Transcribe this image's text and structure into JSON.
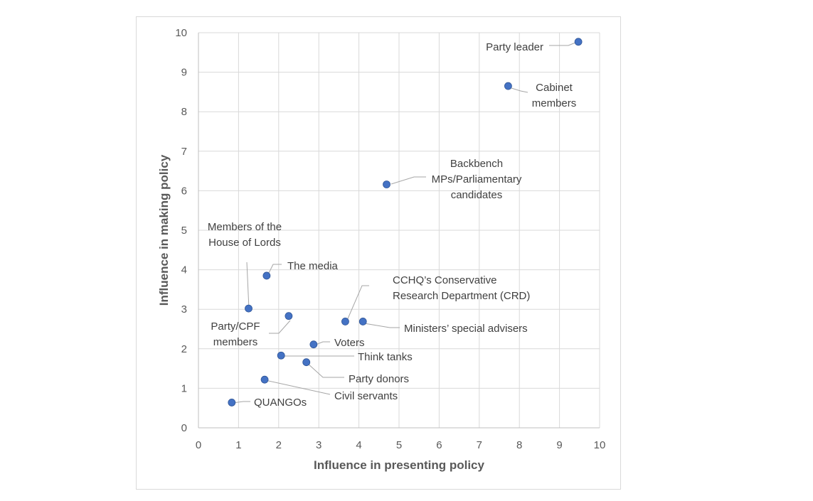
{
  "chart_data": {
    "type": "scatter",
    "xlabel": "Influence in presenting policy",
    "ylabel": "Influence in making policy",
    "xlim": [
      0,
      10
    ],
    "ylim": [
      0,
      10
    ],
    "xticks": [
      "0",
      "1",
      "2",
      "3",
      "4",
      "5",
      "6",
      "7",
      "8",
      "9",
      "10"
    ],
    "yticks": [
      "0",
      "1",
      "2",
      "3",
      "4",
      "5",
      "6",
      "7",
      "8",
      "9",
      "10"
    ],
    "grid": true,
    "marker_color": "#4472c4",
    "points": [
      {
        "label": [
          "Party leader"
        ],
        "x": 9.47,
        "y": 9.77
      },
      {
        "label": [
          "Cabinet",
          "members"
        ],
        "x": 7.72,
        "y": 8.65
      },
      {
        "label": [
          "Backbench",
          "MPs/Parliamentary",
          "candidates"
        ],
        "x": 4.69,
        "y": 6.16
      },
      {
        "label": [
          "Members of the",
          "House of Lords"
        ],
        "x": 1.25,
        "y": 3.02
      },
      {
        "label": [
          "The media"
        ],
        "x": 1.7,
        "y": 3.85
      },
      {
        "label": [
          "Party/CPF",
          "members"
        ],
        "x": 2.25,
        "y": 2.83
      },
      {
        "label": [
          "CCHQ’s Conservative",
          "Research Department (CRD)"
        ],
        "x": 3.66,
        "y": 2.69
      },
      {
        "label": [
          "Ministers’ special advisers"
        ],
        "x": 4.1,
        "y": 2.69
      },
      {
        "label": [
          "Voters"
        ],
        "x": 2.87,
        "y": 2.11
      },
      {
        "label": [
          "Think tanks"
        ],
        "x": 2.06,
        "y": 1.83
      },
      {
        "label": [
          "Party donors"
        ],
        "x": 2.69,
        "y": 1.66
      },
      {
        "label": [
          "Civil servants"
        ],
        "x": 1.65,
        "y": 1.22
      },
      {
        "label": [
          "QUANGOs"
        ],
        "x": 0.83,
        "y": 0.64
      }
    ]
  }
}
